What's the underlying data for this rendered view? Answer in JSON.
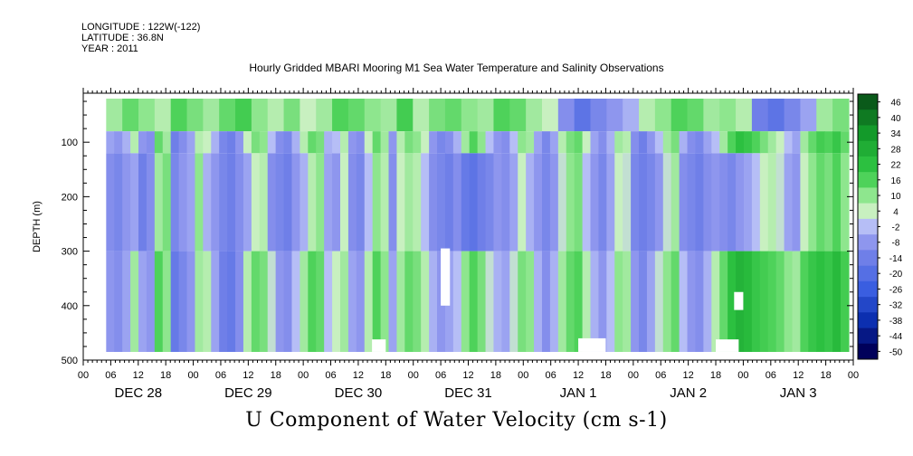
{
  "header": {
    "longitude": "LONGITUDE : 122W(-122)",
    "latitude": "LATITUDE : 36.8N",
    "year": "YEAR : 2011",
    "title": "Hourly Gridded MBARI Mooring M1 Sea Water Temperature and Salinity Observations"
  },
  "footer": {
    "variable_title": "U Component of Water Velocity (cm s-1)"
  },
  "chart_data": {
    "type": "heatmap",
    "title": "Hourly Gridded MBARI Mooring M1 Sea Water Temperature and Salinity Observations",
    "subtitle": "U Component of Water Velocity (cm s-1)",
    "ylabel": "DEPTH (m)",
    "xlabel": "",
    "y_axis": {
      "ticks": [
        100,
        200,
        300,
        400,
        500
      ],
      "range": [
        10,
        500
      ],
      "inverted": true
    },
    "x_axis": {
      "range_hours": [
        0,
        168
      ],
      "hour_ticks": [
        "00",
        "06",
        "12",
        "18",
        "00",
        "06",
        "12",
        "18",
        "00",
        "06",
        "12",
        "18",
        "00",
        "06",
        "12",
        "18",
        "00",
        "06",
        "12",
        "18",
        "00",
        "06",
        "12",
        "18",
        "00",
        "06",
        "12",
        "18",
        "00"
      ],
      "day_labels": [
        "DEC 28",
        "DEC 29",
        "DEC 30",
        "DEC 31",
        "JAN  1",
        "JAN  2",
        "JAN  3"
      ]
    },
    "colorbar": {
      "levels": [
        46,
        40,
        34,
        28,
        22,
        16,
        10,
        4,
        -2,
        -8,
        -14,
        -20,
        -26,
        -32,
        -38,
        -44,
        -50
      ],
      "min": -50,
      "max": 50
    },
    "data_extent": {
      "time_start_hour": 5,
      "time_end_hour": 167,
      "depth_top": 20,
      "depth_bottom": 485
    },
    "colors": {
      "positive": "#19c43a",
      "negative": "#7d82ee",
      "near_zero": "#c8f0c0"
    },
    "columns_u": [
      -6,
      -8,
      -4,
      6,
      -8,
      -10,
      14,
      8,
      -14,
      -10,
      -6,
      6,
      4,
      -4,
      -12,
      -14,
      -8,
      4,
      12,
      10,
      -2,
      -10,
      -12,
      -4,
      6,
      14,
      12,
      -4,
      -2,
      6,
      -8,
      -10,
      4,
      14,
      8,
      -8,
      6,
      12,
      10,
      4,
      -8,
      -12,
      -10,
      -4,
      8,
      16,
      10,
      -2,
      -8,
      -10,
      -2,
      10,
      8,
      -6,
      -12,
      -6,
      6,
      12,
      14,
      4,
      -6,
      -10,
      -4,
      8,
      6,
      -10,
      -14,
      -8,
      -2,
      8,
      12,
      -4,
      -10,
      -12,
      -6,
      -2,
      8,
      16,
      22,
      20,
      16,
      12,
      8,
      4,
      -2,
      -6,
      8,
      14,
      18,
      16,
      20,
      14
    ],
    "patterns": [
      {
        "depth_top": 20,
        "depth_bottom": 80,
        "u": [
          8,
          14,
          10,
          6,
          16,
          12,
          8,
          14,
          18,
          10,
          6,
          12,
          4,
          8,
          16,
          14,
          10,
          8,
          18,
          6,
          12,
          14,
          10,
          8,
          16,
          14,
          8,
          4,
          -10,
          -18,
          -12,
          -8,
          -4,
          6,
          10,
          16,
          14,
          8,
          10,
          6,
          -14,
          -18,
          -12,
          -6,
          8,
          12
        ]
      },
      {
        "depth_top": 120,
        "depth_bottom": 300,
        "u": [
          -10,
          -12,
          -8,
          -6,
          -14,
          -10,
          8,
          12,
          -12,
          -8,
          -6,
          10,
          -4,
          -8,
          -12,
          -14,
          -10,
          -6,
          4,
          6,
          -10,
          -12,
          -14,
          -8,
          -4,
          6,
          10,
          -6,
          -8,
          4,
          -10,
          -12,
          -2,
          10,
          6,
          -10,
          4,
          8,
          6,
          -2,
          -10,
          -12,
          -14,
          -10,
          -16,
          -18,
          -14,
          -12,
          -8,
          -10,
          -6,
          4,
          -4,
          -8,
          -12,
          -8,
          2,
          10,
          12,
          -2,
          -8,
          -12,
          -6,
          4,
          2,
          -12,
          -14,
          -12,
          -8,
          2,
          8,
          -10,
          -12,
          -14,
          -10,
          -8,
          -10,
          -12,
          -8,
          -6,
          -2,
          4,
          6,
          2,
          -6,
          -8,
          4,
          10,
          14,
          12,
          16,
          10
        ]
      },
      {
        "depth_top": 300,
        "depth_bottom": 485,
        "u": [
          -8,
          -10,
          -6,
          8,
          -6,
          -8,
          16,
          10,
          -16,
          -12,
          -8,
          8,
          6,
          -6,
          -14,
          -16,
          -10,
          6,
          14,
          12,
          2,
          -8,
          -10,
          -2,
          8,
          16,
          14,
          -2,
          4,
          8,
          -6,
          -8,
          6,
          16,
          10,
          -6,
          8,
          14,
          12,
          6,
          -4,
          -8,
          -6,
          -2,
          10,
          16,
          12,
          2,
          -4,
          -6,
          2,
          12,
          10,
          -4,
          -10,
          -4,
          8,
          14,
          16,
          6,
          -4,
          -8,
          -2,
          10,
          8,
          -8,
          -12,
          -6,
          2,
          10,
          14,
          -2,
          -8,
          -10,
          -4,
          6,
          14,
          22,
          26,
          24,
          20,
          18,
          16,
          14,
          10,
          8,
          16,
          20,
          22,
          20,
          24,
          18
        ]
      }
    ],
    "missing_blocks": [
      {
        "time_start_hour": 78,
        "time_end_hour": 80,
        "depth_top": 295,
        "depth_bottom": 400
      },
      {
        "time_start_hour": 63,
        "time_end_hour": 66,
        "depth_top": 462,
        "depth_bottom": 485
      },
      {
        "time_start_hour": 108,
        "time_end_hour": 114,
        "depth_top": 460,
        "depth_bottom": 485
      },
      {
        "time_start_hour": 138,
        "time_end_hour": 143,
        "depth_top": 462,
        "depth_bottom": 485
      },
      {
        "time_start_hour": 142,
        "time_end_hour": 144,
        "depth_top": 375,
        "depth_bottom": 408
      }
    ]
  }
}
